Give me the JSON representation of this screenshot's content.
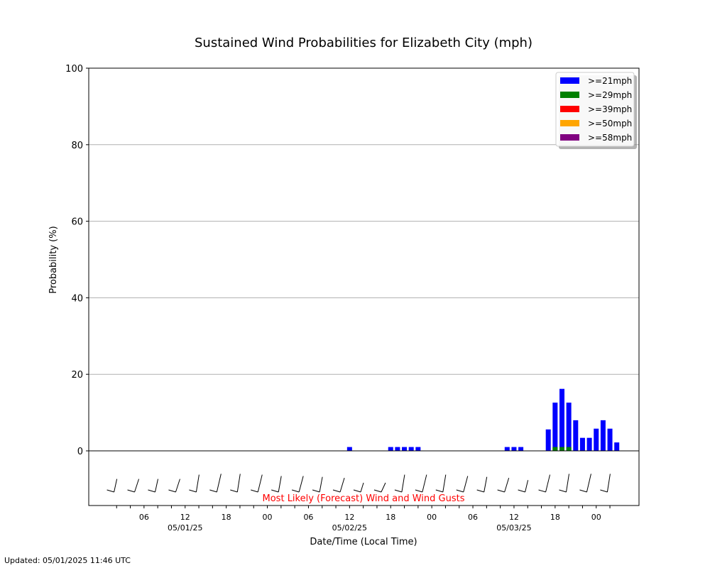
{
  "chart_data": {
    "type": "bar",
    "title": "Sustained Wind Probabilities for Elizabeth City (mph)",
    "ylabel": "Probability (%)",
    "xlabel": "Date/Time (Local Time)",
    "ylim": [
      0,
      100
    ],
    "yticks": [
      0,
      20,
      40,
      60,
      80,
      100
    ],
    "grid": true,
    "legend_position": "top-right",
    "x_start": "05/01/25 01:00",
    "x_step_hours": 1,
    "x_ticks": [
      {
        "label": "06",
        "date": "",
        "hour": 6
      },
      {
        "label": "12",
        "date": "05/01/25",
        "hour": 12
      },
      {
        "label": "18",
        "date": "",
        "hour": 18
      },
      {
        "label": "00",
        "date": "",
        "hour": 24
      },
      {
        "label": "06",
        "date": "",
        "hour": 30
      },
      {
        "label": "12",
        "date": "05/02/25",
        "hour": 36
      },
      {
        "label": "18",
        "date": "",
        "hour": 42
      },
      {
        "label": "00",
        "date": "",
        "hour": 48
      },
      {
        "label": "06",
        "date": "",
        "hour": 54
      },
      {
        "label": "12",
        "date": "05/03/25",
        "hour": 60
      },
      {
        "label": "18",
        "date": "",
        "hour": 66
      },
      {
        "label": "00",
        "date": "",
        "hour": 72
      }
    ],
    "series": [
      {
        "name": ">=21mph",
        "color": "#0000ff",
        "values": [
          0,
          0,
          0,
          0,
          0,
          0,
          0,
          0,
          0,
          0,
          0,
          0,
          0,
          0,
          0,
          0,
          0,
          0,
          0,
          0,
          0,
          0,
          0,
          0,
          0,
          0,
          0,
          0,
          0,
          0,
          0,
          0,
          0,
          0,
          0,
          1,
          0,
          0,
          0,
          0,
          0,
          1,
          1,
          1,
          1,
          1,
          0,
          0,
          0,
          0,
          0,
          0,
          0,
          0,
          0,
          0,
          0,
          0,
          1,
          1,
          1,
          0,
          0,
          0,
          5.6,
          12.6,
          16.2,
          12.6,
          8,
          3.4,
          3.4,
          5.8,
          8,
          5.8,
          2.2
        ]
      },
      {
        "name": ">=29mph",
        "color": "#008000",
        "values": [
          0,
          0,
          0,
          0,
          0,
          0,
          0,
          0,
          0,
          0,
          0,
          0,
          0,
          0,
          0,
          0,
          0,
          0,
          0,
          0,
          0,
          0,
          0,
          0,
          0,
          0,
          0,
          0,
          0,
          0,
          0,
          0,
          0,
          0,
          0,
          0,
          0,
          0,
          0,
          0,
          0,
          0,
          0,
          0,
          0,
          0,
          0,
          0,
          0,
          0,
          0,
          0,
          0,
          0,
          0,
          0,
          0,
          0,
          0,
          0,
          0,
          0,
          0,
          0,
          0,
          1,
          1,
          1,
          0,
          0,
          0,
          0,
          0,
          0,
          0
        ]
      },
      {
        "name": ">=39mph",
        "color": "#ff0000",
        "values": []
      },
      {
        "name": ">=50mph",
        "color": "#ffa500",
        "values": []
      },
      {
        "name": ">=58mph",
        "color": "#800080",
        "values": []
      }
    ],
    "wind_panel": {
      "label": "Most Likely (Forecast) Wind and Wind Gusts",
      "barb_hours": [
        1,
        4,
        7,
        10,
        13,
        16,
        19,
        22,
        25,
        28,
        31,
        34,
        37,
        40,
        43,
        46,
        49,
        52,
        55,
        58,
        61,
        64,
        67,
        70,
        73
      ],
      "barb_directions_deg": [
        225,
        225,
        225,
        225,
        200,
        190,
        190,
        200,
        210,
        210,
        215,
        220,
        240,
        240,
        200,
        200,
        200,
        210,
        215,
        220,
        230,
        200,
        190,
        190,
        190
      ]
    }
  },
  "footer": {
    "updated": "Updated: 05/01/2025 11:46 UTC"
  }
}
